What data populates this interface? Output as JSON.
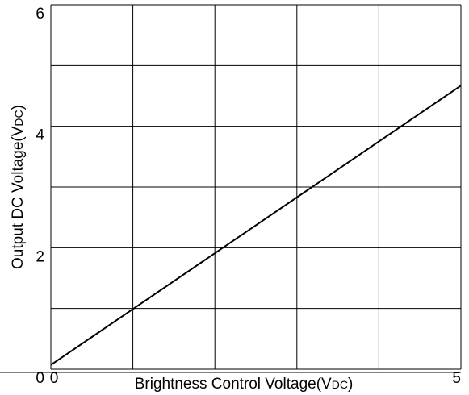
{
  "chart_data": {
    "type": "line",
    "xlabel": {
      "main": "Brightness Control Voltage(V",
      "sub": "DC",
      "end": ")"
    },
    "ylabel": {
      "main": "Output DC Voltage(V",
      "sub": "DC",
      "end": ")"
    },
    "x": [
      0,
      5
    ],
    "series": [
      {
        "color": "#000000",
        "values": [
          0.07,
          4.67
        ]
      }
    ],
    "xlim": [
      0,
      5
    ],
    "xticks": [
      0,
      5
    ],
    "xminorticks": [
      1,
      2,
      3,
      4
    ],
    "ylim": [
      0,
      6
    ],
    "yticks": [
      0,
      2,
      4,
      6
    ],
    "yminorticks": [
      1,
      3,
      5
    ],
    "grid": true
  }
}
